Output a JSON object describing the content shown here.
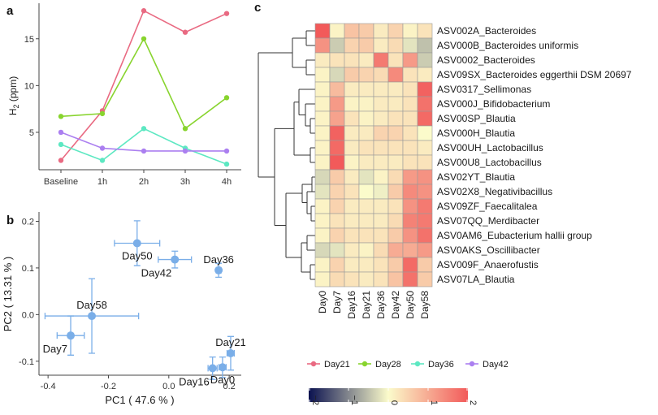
{
  "colors": {
    "day21": "#e96a82",
    "day28": "#88d42e",
    "day36": "#5de8c2",
    "day42": "#ab7ff0",
    "pca": "#7aaee8",
    "heat_neg2": "#0b1250",
    "heat_0": "#fbfbcb",
    "heat_2": "#f25a5a",
    "axis": "#444444",
    "text": "#1a1a1a"
  },
  "chart_data": [
    {
      "panel_label": "a",
      "type": "line",
      "title": "",
      "xlabel": "",
      "ylabel_main": "H",
      "ylabel_sub": "2",
      "ylabel_rest": " (ppm)",
      "categories": [
        "Baseline",
        "1h",
        "2h",
        "3h",
        "4h"
      ],
      "series": [
        {
          "name": "Day21",
          "color_key": "day21",
          "values": [
            2.0,
            7.3,
            18.0,
            15.7,
            17.7
          ]
        },
        {
          "name": "Day28",
          "color_key": "day28",
          "values": [
            6.7,
            7.0,
            15.0,
            5.4,
            8.7
          ]
        },
        {
          "name": "Day36",
          "color_key": "day36",
          "values": [
            3.7,
            2.0,
            5.4,
            3.3,
            1.6
          ]
        },
        {
          "name": "Day42",
          "color_key": "day42",
          "values": [
            5.0,
            3.3,
            3.0,
            3.0,
            3.0
          ]
        }
      ],
      "ylim": [
        1.0,
        18.8
      ],
      "yticks": [
        5,
        10,
        15
      ],
      "legend": {
        "position": "bottom",
        "items": [
          "Day21",
          "Day28",
          "Day36",
          "Day42"
        ]
      }
    },
    {
      "panel_label": "b",
      "type": "scatter",
      "xlabel": "PC1 ( 47.6 % )",
      "ylabel": "PC2 ( 13.31 % )",
      "xlim": [
        -0.43,
        0.24
      ],
      "ylim": [
        -0.13,
        0.22
      ],
      "xticks": [
        -0.4,
        -0.2,
        0.0,
        0.2
      ],
      "yticks": [
        -0.1,
        0.0,
        0.1,
        0.2
      ],
      "xtick_labels": [
        "-0.4",
        "-0.2",
        "0.0",
        "0.2"
      ],
      "ytick_labels": [
        "-0.1",
        "0.0",
        "0.1",
        "0.2"
      ],
      "points": [
        {
          "label": "Day50",
          "x": -0.105,
          "y": 0.153,
          "xerr": 0.075,
          "yerr": 0.048,
          "label_anchor": "below"
        },
        {
          "label": "Day42",
          "x": 0.02,
          "y": 0.118,
          "xerr": 0.055,
          "yerr": 0.018,
          "label_anchor": "below-left"
        },
        {
          "label": "Day36",
          "x": 0.165,
          "y": 0.095,
          "xerr": 0.008,
          "yerr": 0.015,
          "label_anchor": "above"
        },
        {
          "label": "Day58",
          "x": -0.255,
          "y": -0.003,
          "xerr": 0.155,
          "yerr": 0.08,
          "label_anchor": "above"
        },
        {
          "label": "Day7",
          "x": -0.325,
          "y": -0.045,
          "xerr": 0.045,
          "yerr": 0.042,
          "label_anchor": "below-left"
        },
        {
          "label": "Day21",
          "x": 0.205,
          "y": -0.083,
          "xerr": 0.012,
          "yerr": 0.036,
          "label_anchor": "above"
        },
        {
          "label": "Day16",
          "x": 0.145,
          "y": -0.115,
          "xerr": 0.015,
          "yerr": 0.024,
          "label_anchor": "below-left"
        },
        {
          "label": "Day0",
          "x": 0.178,
          "y": -0.113,
          "xerr": 0.012,
          "yerr": 0.022,
          "label_anchor": "below"
        }
      ]
    },
    {
      "panel_label": "c",
      "type": "heatmap",
      "columns": [
        "Day0",
        "Day7",
        "Day16",
        "Day21",
        "Day36",
        "Day42",
        "Day50",
        "Day58"
      ],
      "rows": [
        "ASV002A_Bacteroides",
        "ASV000B_Bacteroides uniformis",
        "ASV0002_Bacteroides",
        "ASV09SX_Bacteroides eggerthii DSM 20697",
        "ASV0317_Sellimonas",
        "ASV000J_Bifidobacterium",
        "ASV00SP_Blautia",
        "ASV000H_Blautia",
        "ASV00UH_Lactobacillus",
        "ASV00U8_Lactobacillus",
        "ASV02YT_Blautia",
        "ASV02X8_Negativibacillus",
        "ASV09ZF_Faecalitalea",
        "ASV07QQ_Merdibacter",
        "ASV0AM6_Eubacterium hallii group",
        "ASV0AKS_Oscillibacter",
        "ASV009F_Anaerofustis",
        "ASV07LA_Blautia"
      ],
      "values": [
        [
          2.0,
          0.1,
          0.7,
          0.6,
          0.2,
          0.5,
          0.1,
          0.3
        ],
        [
          1.3,
          -0.4,
          0.5,
          0.6,
          0.2,
          0.4,
          -0.2,
          -0.5
        ],
        [
          0.2,
          0.3,
          0.3,
          0.2,
          1.6,
          0.3,
          1.2,
          -0.4
        ],
        [
          0.1,
          -0.3,
          0.6,
          0.5,
          0.4,
          1.4,
          0.3,
          0.2
        ],
        [
          0.1,
          0.8,
          0.2,
          0.2,
          0.2,
          0.2,
          0.3,
          1.9
        ],
        [
          0.1,
          1.2,
          0.1,
          0.1,
          0.2,
          0.2,
          0.3,
          1.7
        ],
        [
          0.1,
          1.1,
          0.3,
          0.1,
          0.2,
          0.3,
          0.3,
          1.8
        ],
        [
          0.1,
          1.9,
          0.2,
          0.2,
          0.5,
          0.5,
          0.3,
          0.0
        ],
        [
          0.1,
          1.8,
          0.2,
          0.3,
          0.3,
          0.3,
          0.3,
          0.2
        ],
        [
          0.1,
          2.0,
          0.1,
          0.2,
          0.2,
          0.2,
          0.3,
          0.3
        ],
        [
          -0.3,
          0.6,
          0.2,
          -0.2,
          0.1,
          0.4,
          1.2,
          1.3
        ],
        [
          -0.2,
          0.5,
          0.3,
          0.0,
          -0.1,
          0.6,
          1.4,
          1.3
        ],
        [
          0.1,
          0.5,
          0.2,
          0.2,
          0.2,
          0.3,
          1.3,
          1.6
        ],
        [
          0.1,
          0.3,
          0.2,
          0.2,
          0.2,
          0.4,
          1.5,
          1.6
        ],
        [
          0.1,
          0.5,
          0.3,
          0.3,
          0.3,
          0.6,
          1.3,
          1.7
        ],
        [
          -0.3,
          -0.2,
          0.2,
          0.1,
          0.4,
          1.0,
          1.0,
          1.2
        ],
        [
          0.1,
          0.5,
          0.2,
          0.2,
          0.3,
          0.6,
          1.8,
          0.6
        ],
        [
          0.1,
          0.4,
          0.3,
          0.2,
          0.3,
          0.7,
          1.7,
          0.6
        ]
      ],
      "color_scale": {
        "min": -2,
        "max": 2,
        "ticks": [
          -2,
          -1,
          0,
          1,
          2
        ],
        "tick_labels": [
          "−2",
          "−1",
          "0",
          "1",
          "2"
        ]
      }
    }
  ]
}
